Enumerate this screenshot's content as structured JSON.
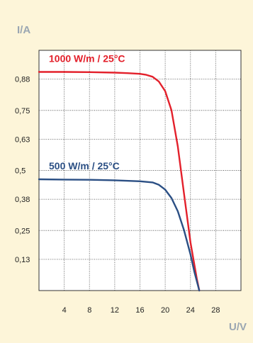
{
  "chart_data": {
    "type": "line",
    "title": "",
    "ylabel": "I/A",
    "xlabel": "U/V",
    "xlim": [
      0,
      32
    ],
    "ylim": [
      0,
      1.0
    ],
    "x_ticks": [
      4,
      8,
      12,
      16,
      20,
      24,
      28
    ],
    "y_ticks": [
      0.13,
      0.25,
      0.38,
      0.5,
      0.63,
      0.75,
      0.88
    ],
    "y_tick_labels": [
      "0,13",
      "0,25",
      "0,38",
      "0,5",
      "0,63",
      "0,75",
      "0,88"
    ],
    "grid": true,
    "series": [
      {
        "name": "1000 W/m  / 25°C",
        "color": "#e3202b",
        "points": [
          [
            0,
            0.91
          ],
          [
            4,
            0.91
          ],
          [
            8,
            0.909
          ],
          [
            12,
            0.907
          ],
          [
            14,
            0.905
          ],
          [
            16,
            0.902
          ],
          [
            17,
            0.898
          ],
          [
            18,
            0.89
          ],
          [
            19,
            0.87
          ],
          [
            20,
            0.83
          ],
          [
            21,
            0.75
          ],
          [
            22,
            0.6
          ],
          [
            23,
            0.4
          ],
          [
            24,
            0.2
          ],
          [
            25,
            0.05
          ],
          [
            25.4,
            0
          ]
        ]
      },
      {
        "name": "500 W/m   / 25°C",
        "color": "#2b4f84",
        "points": [
          [
            0,
            0.463
          ],
          [
            4,
            0.462
          ],
          [
            8,
            0.461
          ],
          [
            12,
            0.459
          ],
          [
            16,
            0.455
          ],
          [
            18,
            0.45
          ],
          [
            19,
            0.44
          ],
          [
            20,
            0.42
          ],
          [
            21,
            0.385
          ],
          [
            22,
            0.33
          ],
          [
            23,
            0.25
          ],
          [
            24,
            0.15
          ],
          [
            24.6,
            0.08
          ],
          [
            25.4,
            0
          ]
        ]
      }
    ]
  }
}
